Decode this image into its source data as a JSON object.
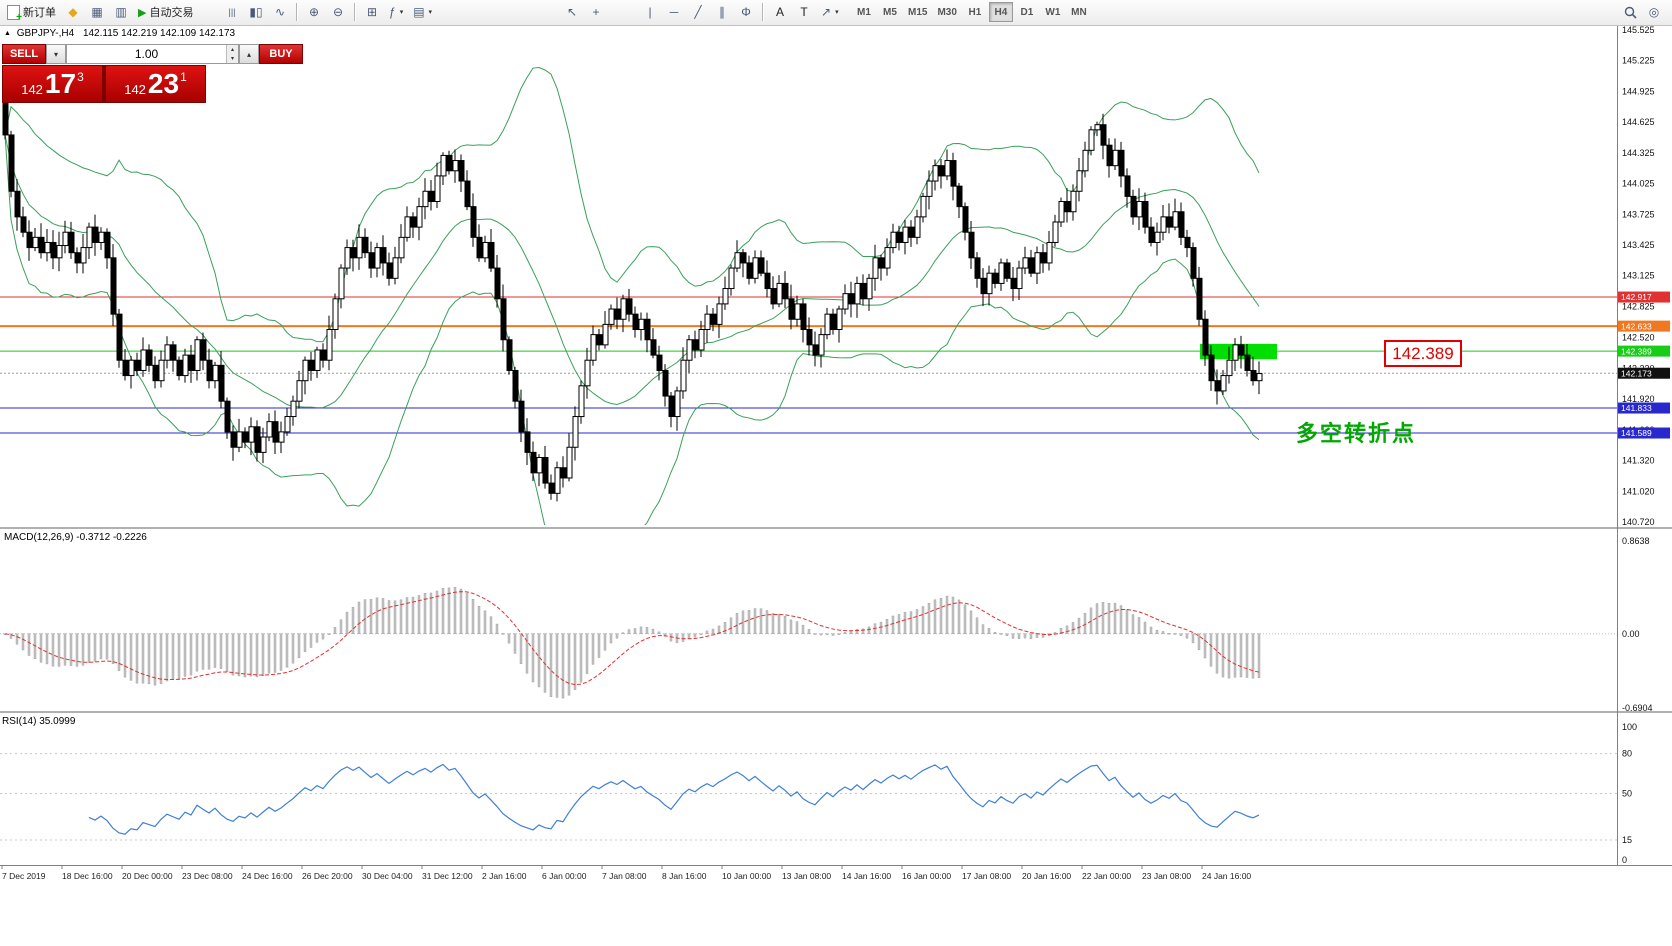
{
  "toolbar": {
    "new_order": "新订单",
    "autotrading": "自动交易",
    "timeframes": [
      "M1",
      "M5",
      "M15",
      "M30",
      "H1",
      "H4",
      "D1",
      "W1",
      "MN"
    ],
    "active_timeframe": "H4"
  },
  "chart_header": {
    "symbol": "GBPJPY-,H4",
    "ohlc": "142.115 142.219 142.109 142.173"
  },
  "trade_panel": {
    "sell_label": "SELL",
    "buy_label": "BUY",
    "volume": "1.00",
    "sell_price": {
      "prefix": "142",
      "pips": "17",
      "point": "3"
    },
    "buy_price": {
      "prefix": "142",
      "pips": "23",
      "point": "1"
    }
  },
  "annotations": {
    "price_callout": "142.389",
    "note_cn": "多空转折点"
  },
  "highlight_rect": {
    "x": 1200,
    "width": 77,
    "price_top": 142.46,
    "price_bottom": 142.31,
    "color": "#00e000"
  },
  "hlines": [
    {
      "price": "142.917",
      "value": 142.917,
      "color": "#e03232",
      "width": 1
    },
    {
      "price": "142.633",
      "value": 142.633,
      "color": "#f07820",
      "width": 2
    },
    {
      "price": "142.389",
      "value": 142.389,
      "color": "#18cc18",
      "width": 1
    },
    {
      "price": "141.833",
      "value": 141.833,
      "color": "#2828cc",
      "width": 1
    },
    {
      "price": "141.589",
      "value": 141.589,
      "color": "#2828cc",
      "width": 1
    }
  ],
  "current_price": {
    "text": "142.173",
    "value": 142.173,
    "tag_bg": "#111111"
  },
  "price_axis_labels": [
    "145.525",
    "145.225",
    "144.925",
    "144.625",
    "144.325",
    "144.025",
    "143.725",
    "143.425",
    "143.125",
    "142.825",
    "142.520",
    "142.220",
    "141.920",
    "141.620",
    "141.320",
    "141.020",
    "140.720"
  ],
  "macd_panel": {
    "label": "MACD(12,26,9) -0.3712 -0.2226",
    "axis": [
      {
        "text": "0.8638",
        "value": 0.8638
      },
      {
        "text": "0.00",
        "value": 0
      },
      {
        "text": "-0.6904",
        "value": -0.6904
      }
    ]
  },
  "rsi_panel": {
    "label": "RSI(14) 35.0999",
    "axis": [
      {
        "text": "100",
        "value": 100
      },
      {
        "text": "80",
        "value": 80
      },
      {
        "text": "50",
        "value": 50
      },
      {
        "text": "15",
        "value": 15
      },
      {
        "text": "0",
        "value": 0
      }
    ],
    "levels": [
      80,
      50,
      15
    ]
  },
  "time_axis": [
    "7 Dec 2019",
    "18 Dec 16:00",
    "20 Dec 00:00",
    "23 Dec 08:00",
    "24 Dec 16:00",
    "26 Dec 20:00",
    "30 Dec 04:00",
    "31 Dec 12:00",
    "2 Jan 16:00",
    "6 Jan 00:00",
    "7 Jan 08:00",
    "8 Jan 16:00",
    "10 Jan 00:00",
    "13 Jan 08:00",
    "14 Jan 16:00",
    "16 Jan 00:00",
    "17 Jan 08:00",
    "20 Jan 16:00",
    "22 Jan 00:00",
    "23 Jan 08:00",
    "24 Jan 16:00"
  ],
  "chart_data": {
    "type": "candlestick",
    "symbol": "GBPJPY",
    "timeframe": "H4",
    "title": "GBPJPY-,H4",
    "ylim": [
      140.72,
      145.525
    ],
    "first_open": 144.9,
    "closes": [
      144.5,
      143.95,
      143.7,
      143.55,
      143.4,
      143.5,
      143.35,
      143.45,
      143.3,
      143.42,
      143.55,
      143.35,
      143.25,
      143.4,
      143.6,
      143.45,
      143.55,
      143.3,
      142.75,
      142.3,
      142.15,
      142.3,
      142.2,
      142.4,
      142.25,
      142.1,
      142.3,
      142.45,
      142.3,
      142.15,
      142.35,
      142.2,
      142.5,
      142.3,
      142.1,
      142.25,
      141.9,
      141.6,
      141.45,
      141.6,
      141.5,
      141.65,
      141.4,
      141.55,
      141.7,
      141.5,
      141.6,
      141.75,
      141.9,
      142.1,
      142.3,
      142.2,
      142.4,
      142.3,
      142.6,
      142.9,
      143.2,
      143.4,
      143.3,
      143.5,
      143.35,
      143.2,
      143.4,
      143.25,
      143.1,
      143.3,
      143.5,
      143.7,
      143.6,
      143.8,
      143.95,
      143.85,
      144.1,
      144.3,
      144.15,
      144.25,
      144.05,
      143.8,
      143.5,
      143.3,
      143.45,
      143.2,
      142.9,
      142.5,
      142.2,
      141.9,
      141.6,
      141.4,
      141.2,
      141.35,
      141.1,
      141.0,
      141.25,
      141.15,
      141.45,
      141.75,
      142.05,
      142.3,
      142.55,
      142.45,
      142.65,
      142.8,
      142.7,
      142.9,
      142.75,
      142.6,
      142.7,
      142.5,
      142.35,
      142.2,
      141.95,
      141.75,
      142.0,
      142.3,
      142.5,
      142.4,
      142.6,
      142.75,
      142.65,
      142.85,
      143.0,
      143.2,
      143.35,
      143.25,
      143.1,
      143.3,
      143.15,
      143.0,
      142.85,
      143.05,
      142.9,
      142.7,
      142.85,
      142.6,
      142.45,
      142.35,
      142.55,
      142.75,
      142.6,
      142.8,
      142.95,
      142.85,
      143.05,
      142.9,
      143.1,
      143.3,
      143.2,
      143.4,
      143.55,
      143.45,
      143.6,
      143.5,
      143.7,
      143.9,
      144.05,
      144.2,
      144.1,
      144.25,
      144.0,
      143.8,
      143.55,
      143.3,
      143.1,
      142.95,
      143.15,
      143.05,
      143.25,
      143.1,
      143.0,
      143.2,
      143.3,
      143.15,
      143.35,
      143.25,
      143.45,
      143.65,
      143.85,
      143.75,
      143.95,
      144.15,
      144.35,
      144.55,
      144.6,
      144.4,
      144.2,
      144.35,
      144.1,
      143.9,
      143.7,
      143.85,
      143.6,
      143.45,
      143.55,
      143.7,
      143.6,
      143.75,
      143.5,
      143.4,
      143.1,
      142.7,
      142.35,
      142.1,
      142.0,
      142.15,
      142.3,
      142.45,
      142.35,
      142.2,
      142.1,
      142.17
    ],
    "indicators": {
      "bollinger": {
        "period": 20,
        "deviation": 2,
        "color": "#3aa05a"
      },
      "macd": {
        "fast": 12,
        "slow": 26,
        "signal": 9,
        "current": "-0.3712 -0.2226",
        "bar_color": "#c4c4c4",
        "signal_color": "#e03232",
        "ylim": [
          -0.6904,
          0.8638
        ]
      },
      "rsi": {
        "period": 14,
        "current": 35.0999,
        "color": "#3f7fd6",
        "ylim": [
          0,
          100
        ]
      }
    }
  }
}
